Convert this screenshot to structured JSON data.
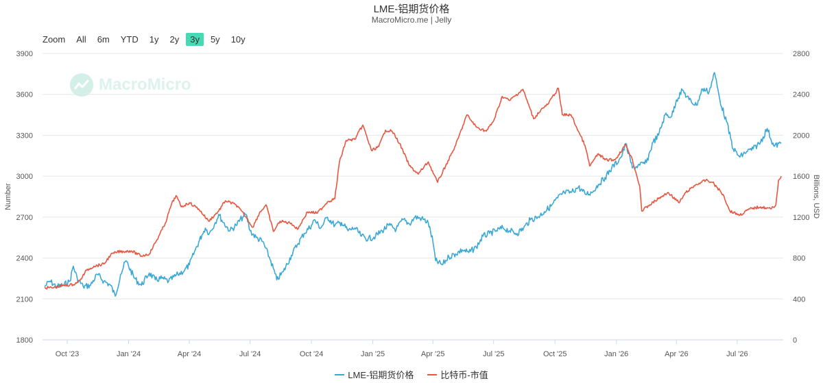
{
  "header": {
    "title": "LME-铝期货价格",
    "subtitle": "MacroMicro.me | Jelly"
  },
  "zoom": {
    "label": "Zoom",
    "buttons": [
      "All",
      "6m",
      "YTD",
      "1y",
      "2y",
      "3y",
      "5y",
      "10y"
    ],
    "active": "3y"
  },
  "watermark": {
    "text": "MacroMicro"
  },
  "chart_data": {
    "type": "line",
    "x_tick_labels": [
      "Oct '23",
      "Jan '24",
      "Apr '24",
      "Jul '24",
      "Oct '24",
      "Jan '25",
      "Apr '25",
      "Jul '25",
      "Oct '25",
      "Jan '26",
      "Apr '26",
      "Jul '26"
    ],
    "y_left": {
      "label": "Number",
      "min": 1800,
      "max": 3900,
      "ticks": [
        1800,
        2100,
        2400,
        2700,
        3000,
        3300,
        3600,
        3900
      ]
    },
    "y_right": {
      "label": "Billions, USD",
      "min": 0,
      "max": 2800,
      "ticks": [
        0,
        400,
        800,
        1200,
        1600,
        2000,
        2400,
        2800
      ]
    },
    "grid": true,
    "legend": "bottom-center",
    "series": [
      {
        "name": "LME-铝期货价格",
        "axis": "left",
        "color": "#3aa8d6",
        "points": [
          [
            "2023-08-28",
            2190
          ],
          [
            "2023-09-05",
            2230
          ],
          [
            "2023-09-15",
            2190
          ],
          [
            "2023-09-25",
            2200
          ],
          [
            "2023-10-05",
            2230
          ],
          [
            "2023-10-10",
            2340
          ],
          [
            "2023-10-16",
            2250
          ],
          [
            "2023-10-25",
            2190
          ],
          [
            "2023-11-05",
            2200
          ],
          [
            "2023-11-15",
            2280
          ],
          [
            "2023-11-25",
            2230
          ],
          [
            "2023-12-05",
            2200
          ],
          [
            "2023-12-12",
            2120
          ],
          [
            "2023-12-20",
            2280
          ],
          [
            "2023-12-28",
            2380
          ],
          [
            "2024-01-10",
            2250
          ],
          [
            "2024-01-20",
            2200
          ],
          [
            "2024-02-01",
            2290
          ],
          [
            "2024-02-10",
            2240
          ],
          [
            "2024-02-20",
            2250
          ],
          [
            "2024-03-01",
            2230
          ],
          [
            "2024-03-15",
            2280
          ],
          [
            "2024-03-25",
            2310
          ],
          [
            "2024-04-01",
            2350
          ],
          [
            "2024-04-10",
            2460
          ],
          [
            "2024-04-20",
            2570
          ],
          [
            "2024-04-25",
            2620
          ],
          [
            "2024-05-01",
            2580
          ],
          [
            "2024-05-10",
            2660
          ],
          [
            "2024-05-15",
            2720
          ],
          [
            "2024-05-22",
            2660
          ],
          [
            "2024-06-01",
            2600
          ],
          [
            "2024-06-10",
            2640
          ],
          [
            "2024-06-20",
            2700
          ],
          [
            "2024-06-25",
            2720
          ],
          [
            "2024-07-01",
            2600
          ],
          [
            "2024-07-10",
            2550
          ],
          [
            "2024-07-20",
            2520
          ],
          [
            "2024-08-01",
            2380
          ],
          [
            "2024-08-10",
            2240
          ],
          [
            "2024-08-20",
            2300
          ],
          [
            "2024-09-01",
            2420
          ],
          [
            "2024-09-10",
            2500
          ],
          [
            "2024-09-20",
            2580
          ],
          [
            "2024-10-01",
            2640
          ],
          [
            "2024-10-05",
            2680
          ],
          [
            "2024-10-15",
            2620
          ],
          [
            "2024-10-25",
            2700
          ],
          [
            "2024-11-05",
            2640
          ],
          [
            "2024-11-15",
            2660
          ],
          [
            "2024-11-25",
            2600
          ],
          [
            "2024-12-05",
            2620
          ],
          [
            "2024-12-15",
            2560
          ],
          [
            "2024-12-25",
            2540
          ],
          [
            "2025-01-05",
            2560
          ],
          [
            "2025-01-15",
            2600
          ],
          [
            "2025-01-25",
            2640
          ],
          [
            "2025-02-05",
            2610
          ],
          [
            "2025-02-15",
            2680
          ],
          [
            "2025-02-25",
            2650
          ],
          [
            "2025-03-05",
            2700
          ],
          [
            "2025-03-15",
            2690
          ],
          [
            "2025-03-25",
            2660
          ],
          [
            "2025-04-01",
            2520
          ],
          [
            "2025-04-05",
            2380
          ],
          [
            "2025-04-15",
            2350
          ],
          [
            "2025-04-25",
            2410
          ],
          [
            "2025-05-05",
            2430
          ],
          [
            "2025-05-15",
            2460
          ],
          [
            "2025-05-25",
            2440
          ],
          [
            "2025-06-05",
            2480
          ],
          [
            "2025-06-15",
            2560
          ],
          [
            "2025-06-25",
            2580
          ],
          [
            "2025-07-05",
            2600
          ],
          [
            "2025-07-15",
            2620
          ],
          [
            "2025-07-25",
            2600
          ],
          [
            "2025-08-05",
            2580
          ],
          [
            "2025-08-15",
            2620
          ],
          [
            "2025-08-25",
            2680
          ],
          [
            "2025-09-05",
            2700
          ],
          [
            "2025-09-15",
            2740
          ],
          [
            "2025-09-25",
            2780
          ],
          [
            "2025-10-05",
            2840
          ],
          [
            "2025-10-15",
            2880
          ],
          [
            "2025-10-25",
            2880
          ],
          [
            "2025-11-05",
            2920
          ],
          [
            "2025-11-15",
            2870
          ],
          [
            "2025-11-25",
            2880
          ],
          [
            "2025-12-05",
            2940
          ],
          [
            "2025-12-15",
            2990
          ],
          [
            "2025-12-25",
            3060
          ],
          [
            "2026-01-05",
            3120
          ],
          [
            "2026-01-10",
            3160
          ],
          [
            "2026-01-15",
            3240
          ],
          [
            "2026-01-25",
            3060
          ],
          [
            "2026-02-05",
            3080
          ],
          [
            "2026-02-15",
            3100
          ],
          [
            "2026-02-25",
            3250
          ],
          [
            "2026-03-05",
            3300
          ],
          [
            "2026-03-15",
            3450
          ],
          [
            "2026-03-25",
            3440
          ],
          [
            "2026-04-01",
            3560
          ],
          [
            "2026-04-10",
            3630
          ],
          [
            "2026-04-20",
            3560
          ],
          [
            "2026-05-01",
            3520
          ],
          [
            "2026-05-10",
            3640
          ],
          [
            "2026-05-20",
            3620
          ],
          [
            "2026-05-28",
            3760
          ],
          [
            "2026-06-05",
            3560
          ],
          [
            "2026-06-15",
            3400
          ],
          [
            "2026-06-25",
            3200
          ],
          [
            "2026-07-05",
            3140
          ],
          [
            "2026-07-15",
            3180
          ],
          [
            "2026-07-25",
            3200
          ],
          [
            "2026-08-05",
            3250
          ],
          [
            "2026-08-15",
            3350
          ],
          [
            "2026-08-25",
            3220
          ],
          [
            "2026-09-05",
            3240
          ]
        ]
      },
      {
        "name": "比特币-市值",
        "axis": "right",
        "color": "#e8553e",
        "points": [
          [
            "2023-08-28",
            510
          ],
          [
            "2023-09-10",
            510
          ],
          [
            "2023-09-25",
            530
          ],
          [
            "2023-10-10",
            540
          ],
          [
            "2023-10-20",
            580
          ],
          [
            "2023-10-30",
            680
          ],
          [
            "2023-11-10",
            720
          ],
          [
            "2023-11-25",
            740
          ],
          [
            "2023-12-05",
            830
          ],
          [
            "2023-12-15",
            860
          ],
          [
            "2024-01-05",
            870
          ],
          [
            "2024-01-20",
            820
          ],
          [
            "2024-02-01",
            840
          ],
          [
            "2024-02-15",
            1010
          ],
          [
            "2024-02-25",
            1140
          ],
          [
            "2024-03-05",
            1320
          ],
          [
            "2024-03-12",
            1410
          ],
          [
            "2024-03-20",
            1300
          ],
          [
            "2024-04-01",
            1340
          ],
          [
            "2024-04-15",
            1280
          ],
          [
            "2024-04-30",
            1160
          ],
          [
            "2024-05-15",
            1260
          ],
          [
            "2024-05-25",
            1360
          ],
          [
            "2024-06-10",
            1320
          ],
          [
            "2024-06-25",
            1200
          ],
          [
            "2024-07-05",
            1100
          ],
          [
            "2024-07-15",
            1240
          ],
          [
            "2024-07-25",
            1320
          ],
          [
            "2024-08-05",
            1060
          ],
          [
            "2024-08-15",
            1160
          ],
          [
            "2024-09-01",
            1140
          ],
          [
            "2024-09-10",
            1080
          ],
          [
            "2024-09-25",
            1250
          ],
          [
            "2024-10-10",
            1240
          ],
          [
            "2024-10-25",
            1350
          ],
          [
            "2024-11-05",
            1380
          ],
          [
            "2024-11-12",
            1740
          ],
          [
            "2024-11-22",
            1950
          ],
          [
            "2024-12-05",
            1960
          ],
          [
            "2024-12-17",
            2100
          ],
          [
            "2024-12-30",
            1850
          ],
          [
            "2025-01-10",
            1890
          ],
          [
            "2025-01-20",
            2050
          ],
          [
            "2025-01-30",
            2040
          ],
          [
            "2025-02-10",
            1920
          ],
          [
            "2025-02-25",
            1700
          ],
          [
            "2025-03-10",
            1620
          ],
          [
            "2025-03-25",
            1740
          ],
          [
            "2025-04-08",
            1540
          ],
          [
            "2025-04-20",
            1700
          ],
          [
            "2025-05-05",
            1900
          ],
          [
            "2025-05-22",
            2200
          ],
          [
            "2025-06-05",
            2080
          ],
          [
            "2025-06-20",
            2040
          ],
          [
            "2025-07-01",
            2140
          ],
          [
            "2025-07-14",
            2380
          ],
          [
            "2025-07-25",
            2340
          ],
          [
            "2025-08-14",
            2450
          ],
          [
            "2025-08-30",
            2160
          ],
          [
            "2025-09-10",
            2250
          ],
          [
            "2025-09-20",
            2300
          ],
          [
            "2025-10-06",
            2460
          ],
          [
            "2025-10-12",
            2200
          ],
          [
            "2025-10-25",
            2200
          ],
          [
            "2025-11-05",
            2040
          ],
          [
            "2025-11-15",
            1900
          ],
          [
            "2025-11-22",
            1700
          ],
          [
            "2025-12-05",
            1820
          ],
          [
            "2025-12-15",
            1760
          ],
          [
            "2025-12-30",
            1760
          ],
          [
            "2026-01-15",
            1910
          ],
          [
            "2026-01-25",
            1760
          ],
          [
            "2026-02-05",
            1500
          ],
          [
            "2026-02-08",
            1260
          ],
          [
            "2026-02-20",
            1320
          ],
          [
            "2026-03-05",
            1380
          ],
          [
            "2026-03-20",
            1440
          ],
          [
            "2026-04-05",
            1340
          ],
          [
            "2026-04-15",
            1440
          ],
          [
            "2026-05-01",
            1520
          ],
          [
            "2026-05-15",
            1560
          ],
          [
            "2026-05-25",
            1540
          ],
          [
            "2026-06-10",
            1420
          ],
          [
            "2026-06-20",
            1260
          ],
          [
            "2026-07-05",
            1220
          ],
          [
            "2026-07-20",
            1280
          ],
          [
            "2026-08-05",
            1300
          ],
          [
            "2026-08-20",
            1280
          ],
          [
            "2026-08-28",
            1320
          ],
          [
            "2026-09-01",
            1560
          ],
          [
            "2026-09-05",
            1600
          ]
        ]
      }
    ]
  }
}
